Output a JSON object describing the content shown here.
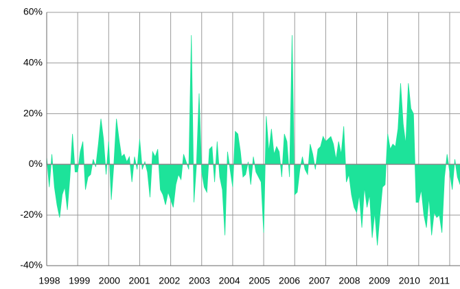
{
  "chart_data": {
    "type": "area",
    "color": "#1de39a",
    "grid": true,
    "xlim": [
      1998,
      2011.333
    ],
    "xticks": [
      1998,
      1999,
      2000,
      2001,
      2002,
      2003,
      2004,
      2005,
      2006,
      2007,
      2008,
      2009,
      2010,
      2011
    ],
    "ylim": [
      -40,
      60
    ],
    "yticks": [
      {
        "value": -40,
        "label": "-40%"
      },
      {
        "value": -20,
        "label": "-20%"
      },
      {
        "value": 0,
        "label": "0%"
      },
      {
        "value": 20,
        "label": "20%"
      },
      {
        "value": 40,
        "label": "40%"
      },
      {
        "value": 60,
        "label": "60%"
      }
    ],
    "x": [
      1998,
      1998.083,
      1998.167,
      1998.25,
      1998.333,
      1998.417,
      1998.5,
      1998.583,
      1998.667,
      1998.75,
      1998.833,
      1998.917,
      1999,
      1999.083,
      1999.167,
      1999.25,
      1999.333,
      1999.417,
      1999.5,
      1999.583,
      1999.667,
      1999.75,
      1999.833,
      1999.917,
      2000,
      2000.083,
      2000.167,
      2000.25,
      2000.333,
      2000.417,
      2000.5,
      2000.583,
      2000.667,
      2000.75,
      2000.833,
      2000.917,
      2001,
      2001.083,
      2001.167,
      2001.25,
      2001.333,
      2001.417,
      2001.5,
      2001.583,
      2001.667,
      2001.75,
      2001.833,
      2001.917,
      2002,
      2002.083,
      2002.167,
      2002.25,
      2002.333,
      2002.417,
      2002.5,
      2002.583,
      2002.667,
      2002.75,
      2002.833,
      2002.917,
      2003,
      2003.083,
      2003.167,
      2003.25,
      2003.333,
      2003.417,
      2003.5,
      2003.583,
      2003.667,
      2003.75,
      2003.833,
      2003.917,
      2004,
      2004.083,
      2004.167,
      2004.25,
      2004.333,
      2004.417,
      2004.5,
      2004.583,
      2004.667,
      2004.75,
      2004.833,
      2004.917,
      2005,
      2005.083,
      2005.167,
      2005.25,
      2005.333,
      2005.417,
      2005.5,
      2005.583,
      2005.667,
      2005.75,
      2005.833,
      2005.917,
      2006,
      2006.083,
      2006.167,
      2006.25,
      2006.333,
      2006.417,
      2006.5,
      2006.583,
      2006.667,
      2006.75,
      2006.833,
      2006.917,
      2007,
      2007.083,
      2007.167,
      2007.25,
      2007.333,
      2007.417,
      2007.5,
      2007.583,
      2007.667,
      2007.75,
      2007.833,
      2007.917,
      2008,
      2008.083,
      2008.167,
      2008.25,
      2008.333,
      2008.417,
      2008.5,
      2008.583,
      2008.667,
      2008.75,
      2008.833,
      2008.917,
      2009,
      2009.083,
      2009.167,
      2009.25,
      2009.333,
      2009.417,
      2009.5,
      2009.583,
      2009.667,
      2009.75,
      2009.833,
      2009.917,
      2010,
      2010.083,
      2010.167,
      2010.25,
      2010.333,
      2010.417,
      2010.5,
      2010.583,
      2010.667,
      2010.75,
      2010.833,
      2010.917,
      2011,
      2011.083,
      2011.167,
      2011.25,
      2011.333
    ],
    "values": [
      3,
      -9,
      4,
      -9,
      -16,
      -21,
      -12,
      -9,
      -18,
      -5,
      12,
      -3,
      -3,
      5,
      9,
      -10,
      -5,
      -4,
      2,
      -1,
      8,
      18,
      10,
      -4,
      9,
      -14,
      0,
      18,
      10,
      3,
      4,
      1,
      3,
      -7,
      3,
      -2,
      10,
      -2,
      1,
      -3,
      -13,
      5,
      3,
      6,
      -10,
      -12,
      -16,
      -11,
      -14,
      -17,
      -8,
      -4,
      -6,
      4,
      1,
      -2,
      51,
      -15,
      0,
      28,
      -3,
      -9,
      -11,
      6,
      7,
      -7,
      9,
      -5,
      -10,
      -28,
      5,
      -2,
      -9,
      13,
      12,
      5,
      -5,
      -4,
      1,
      -8,
      3,
      -3,
      -5,
      -7,
      -27,
      19,
      5,
      14,
      4,
      7,
      5,
      -5,
      12,
      9,
      -5,
      51,
      -12,
      -11,
      -2,
      3,
      -2,
      -4,
      8,
      4,
      -2,
      6,
      7,
      11,
      9,
      10,
      11,
      8,
      2,
      9,
      4,
      15,
      -7,
      -4,
      -12,
      -17,
      -19,
      -12,
      -25,
      -9,
      -17,
      -12,
      -29,
      -19,
      -32,
      -20,
      -9,
      -8,
      12,
      6,
      8,
      7,
      14,
      32,
      16,
      8,
      32,
      22,
      20,
      -15,
      -15,
      -10,
      -20,
      -25,
      -13,
      -28,
      -19,
      -21,
      -20,
      -27,
      -5,
      4,
      -3,
      -10,
      2,
      -5,
      -8
    ]
  }
}
